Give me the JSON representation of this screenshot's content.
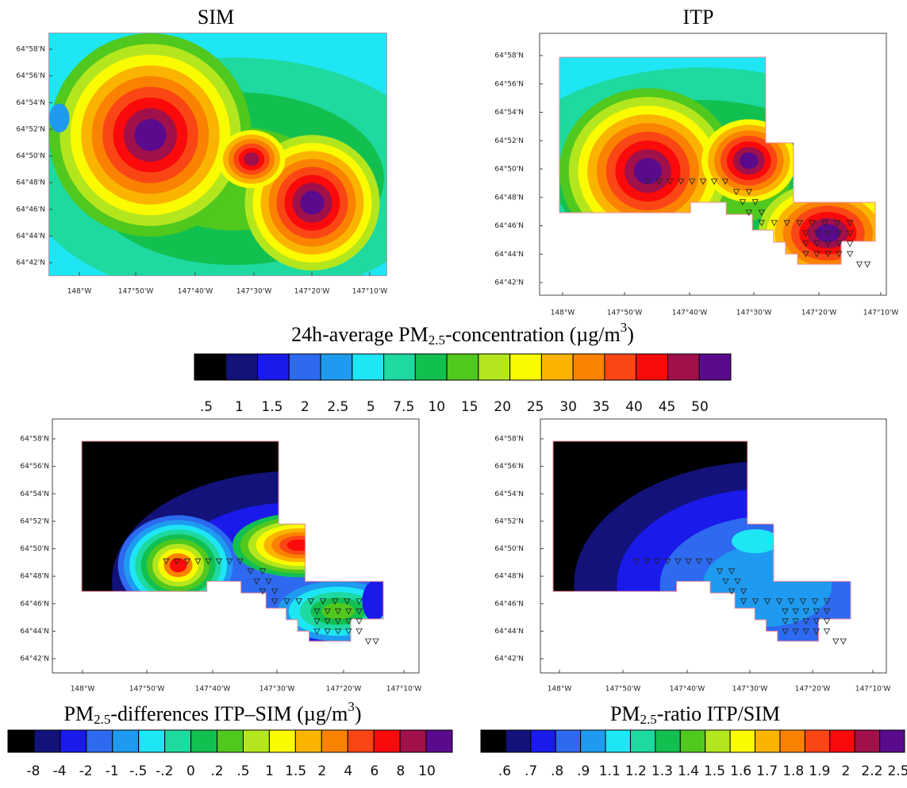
{
  "palette": [
    "#000000",
    "#12127a",
    "#1a1aeb",
    "#2d6af0",
    "#1e9bf0",
    "#1ee6f5",
    "#1ed9a0",
    "#12c050",
    "#50c81e",
    "#b4e61e",
    "#fafa00",
    "#fab400",
    "#fa8200",
    "#fa4614",
    "#fa0a0a",
    "#a0104a",
    "#5a0a8c"
  ],
  "panels": [
    {
      "title": "SIM",
      "lat_labels": [
        "64°58'N",
        "64°56'N",
        "64°54'N",
        "64°52'N",
        "64°50'N",
        "64°48'N",
        "64°46'N",
        "64°44'N",
        "64°42'N"
      ],
      "lon_labels": [
        "148°W",
        "147°50'W",
        "147°40'W",
        "147°30'W",
        "147°20'W",
        "147°10'W"
      ]
    },
    {
      "title": "ITP",
      "lat_labels": [
        "64°58'N",
        "64°56'N",
        "64°54'N",
        "64°52'N",
        "64°50'N",
        "64°48'N",
        "64°46'N",
        "64°44'N",
        "64°42'N"
      ],
      "lon_labels": [
        "148°W",
        "147°50'W",
        "147°40'W",
        "147°30'W",
        "147°20'W",
        "147°10'W"
      ]
    },
    {
      "lat_labels": [
        "64°58'N",
        "64°56'N",
        "64°54'N",
        "64°52'N",
        "64°50'N",
        "64°48'N",
        "64°46'N",
        "64°44'N",
        "64°42'N"
      ],
      "lon_labels": [
        "148°W",
        "147°50'W",
        "147°40'W",
        "147°30'W",
        "147°20'W",
        "147°10'W"
      ]
    },
    {
      "lat_labels": [
        "64°58'N",
        "64°56'N",
        "64°54'N",
        "64°52'N",
        "64°50'N",
        "64°48'N",
        "64°46'N",
        "64°44'N",
        "64°42'N"
      ],
      "lon_labels": [
        "148°W",
        "147°50'W",
        "147°40'W",
        "147°30'W",
        "147°20'W",
        "147°10'W"
      ]
    }
  ],
  "colorbars": [
    {
      "title": [
        "24h-average PM",
        "2.5",
        "-concentration (µg/m",
        "3",
        ")"
      ],
      "title_styles": [
        "normal",
        "sub",
        "normal",
        "sup",
        "normal"
      ],
      "labels": [
        ".5",
        "1",
        "1.5",
        "2",
        "2.5",
        "5",
        "7.5",
        "10",
        "15",
        "20",
        "25",
        "30",
        "35",
        "40",
        "45",
        "50"
      ]
    },
    {
      "title": [
        "PM",
        "2.5",
        "-differences ITP–SIM (µg/m",
        "3",
        ")"
      ],
      "title_styles": [
        "normal",
        "sub",
        "normal",
        "sup",
        "normal"
      ],
      "labels": [
        "-8",
        "-4",
        "-2",
        "-1",
        "-.5",
        "-.2",
        "0",
        ".2",
        ".5",
        "1",
        "1.5",
        "2",
        "4",
        "6",
        "8",
        "10"
      ]
    },
    {
      "title": [
        "PM",
        "2.5",
        "-ratio ITP/SIM"
      ],
      "title_styles": [
        "normal",
        "sub",
        "normal"
      ],
      "labels": [
        ".6",
        ".7",
        ".8",
        ".9",
        "1.1",
        "1.2",
        "1.3",
        "1.4",
        "1.5",
        "1.6",
        "1.7",
        "1.8",
        "1.9",
        "2",
        "2.2",
        "2.5"
      ]
    }
  ]
}
